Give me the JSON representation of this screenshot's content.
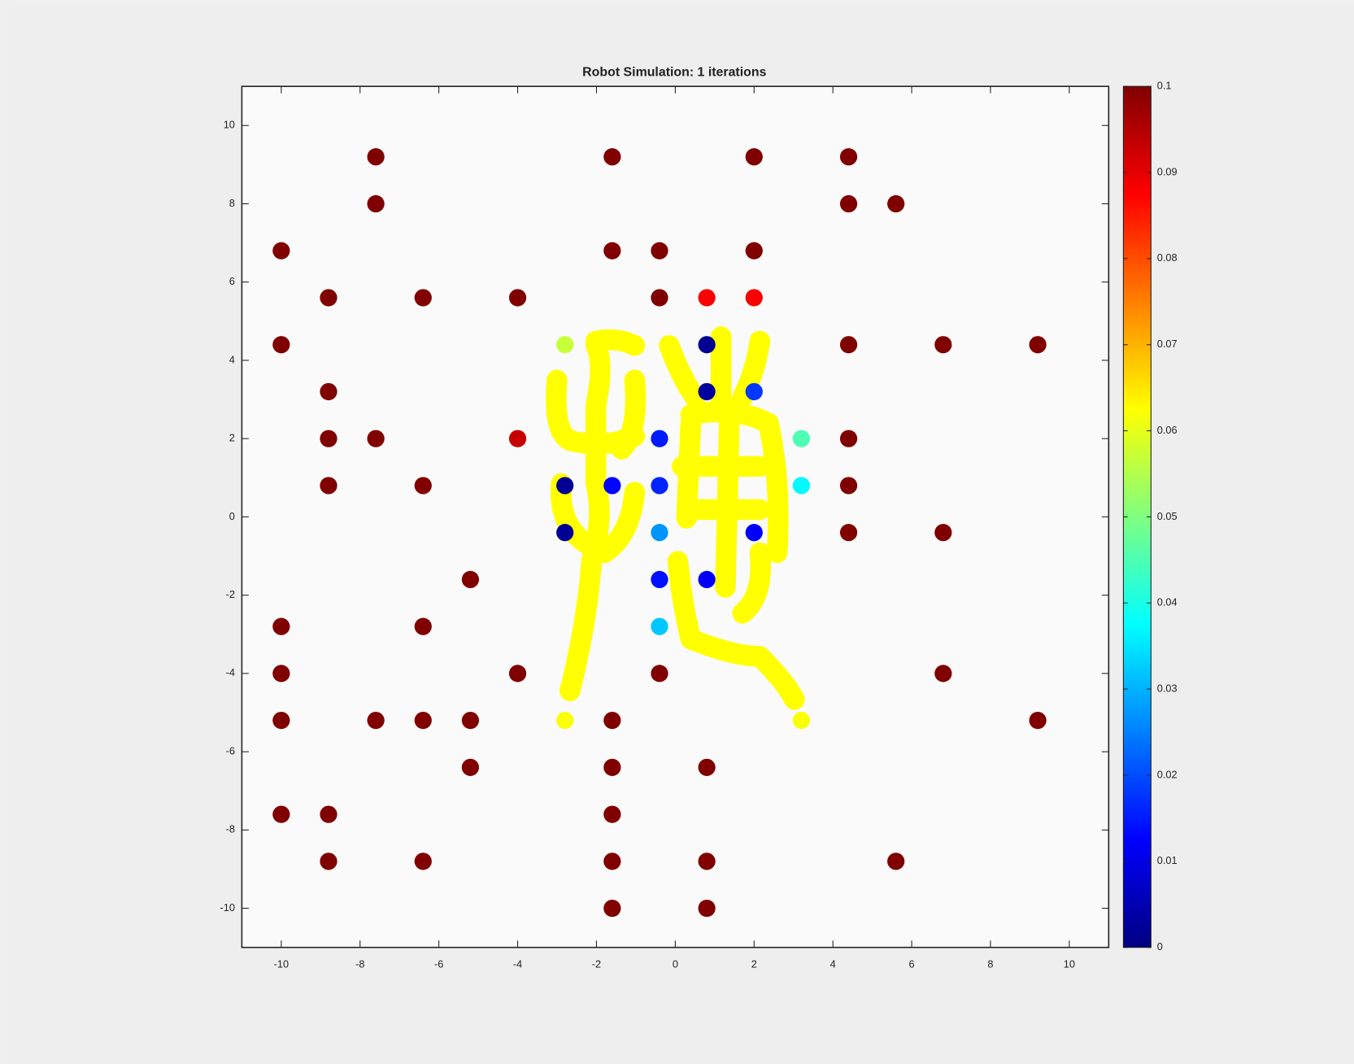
{
  "chart_data": {
    "type": "scatter",
    "title": "Robot Simulation: 1 iterations",
    "x": [
      -7.6,
      -1.6,
      2,
      4.4,
      -7.6,
      4.4,
      5.6,
      -10,
      -1.6,
      -0.4,
      2,
      -8.8,
      -6.4,
      -4,
      -0.4,
      0.8,
      2,
      -10,
      -2.8,
      0.8,
      4.4,
      6.8,
      9.2,
      -8.8,
      0.8,
      2,
      -8.8,
      -7.6,
      -4,
      -0.4,
      3.2,
      4.4,
      -8.8,
      -6.4,
      -2.8,
      -1.6,
      -0.4,
      3.2,
      4.4,
      -2.8,
      -0.4,
      2,
      4.4,
      6.8,
      -5.2,
      -0.4,
      0.8,
      -10,
      -6.4,
      -0.4,
      -10,
      -4,
      -0.4,
      6.8,
      -10,
      -7.6,
      -6.4,
      -5.2,
      -2.8,
      -1.6,
      3.2,
      9.2,
      -5.2,
      -1.6,
      0.8,
      -10,
      -8.8,
      -1.6,
      -8.8,
      -6.4,
      -1.6,
      0.8,
      5.6,
      -1.6,
      0.8
    ],
    "y": [
      9.2,
      9.2,
      9.2,
      9.2,
      8,
      8,
      8,
      6.8,
      6.8,
      6.8,
      6.8,
      5.6,
      5.6,
      5.6,
      5.6,
      5.6,
      5.6,
      4.4,
      4.4,
      4.4,
      4.4,
      4.4,
      4.4,
      3.2,
      3.2,
      3.2,
      2,
      2,
      2,
      2,
      2,
      2,
      0.8,
      0.8,
      0.8,
      0.8,
      0.8,
      0.8,
      0.8,
      -0.4,
      -0.4,
      -0.4,
      -0.4,
      -0.4,
      -1.6,
      -1.6,
      -1.6,
      -2.8,
      -2.8,
      -2.8,
      -4,
      -4,
      -4,
      -4,
      -5.2,
      -5.2,
      -5.2,
      -5.2,
      -5.2,
      -5.2,
      -5.2,
      -5.2,
      -6.4,
      -6.4,
      -6.4,
      -7.6,
      -7.6,
      -7.6,
      -8.8,
      -8.8,
      -8.8,
      -8.8,
      -8.8,
      -10,
      -10
    ],
    "values": [
      0.1,
      0.1,
      0.1,
      0.1,
      0.1,
      0.1,
      0.1,
      0.1,
      0.1,
      0.1,
      0.1,
      0.1,
      0.1,
      0.1,
      0.1,
      0.088,
      0.088,
      0.1,
      0.057,
      0.002,
      0.1,
      0.1,
      0.1,
      0.1,
      0.003,
      0.018,
      0.1,
      0.1,
      0.093,
      0.015,
      0.045,
      0.1,
      0.1,
      0.1,
      0.002,
      0.013,
      0.016,
      0.037,
      0.1,
      0.002,
      0.027,
      0.012,
      0.1,
      0.1,
      0.1,
      0.014,
      0.012,
      0.1,
      0.1,
      0.032,
      0.1,
      0.1,
      0.1,
      0.1,
      0.1,
      0.1,
      0.1,
      0.1,
      0.062,
      0.1,
      0.062,
      0.1,
      0.1,
      0.1,
      0.1,
      0.1,
      0.1,
      0.1,
      0.1,
      0.1,
      0.1,
      0.1,
      0.1,
      0.1,
      0.1
    ],
    "xlim": [
      -11,
      11
    ],
    "ylim": [
      -11,
      11
    ],
    "xticks": [
      -10,
      -8,
      -6,
      -4,
      -2,
      0,
      2,
      4,
      6,
      8,
      10
    ],
    "yticks": [
      -10,
      -8,
      -6,
      -4,
      -2,
      0,
      2,
      4,
      6,
      8,
      10
    ],
    "colormap": "jet",
    "clim": [
      0,
      0.1
    ],
    "cticks": [
      0,
      0.01,
      0.02,
      0.03,
      0.04,
      0.05,
      0.06,
      0.07,
      0.08,
      0.09,
      0.1
    ]
  }
}
